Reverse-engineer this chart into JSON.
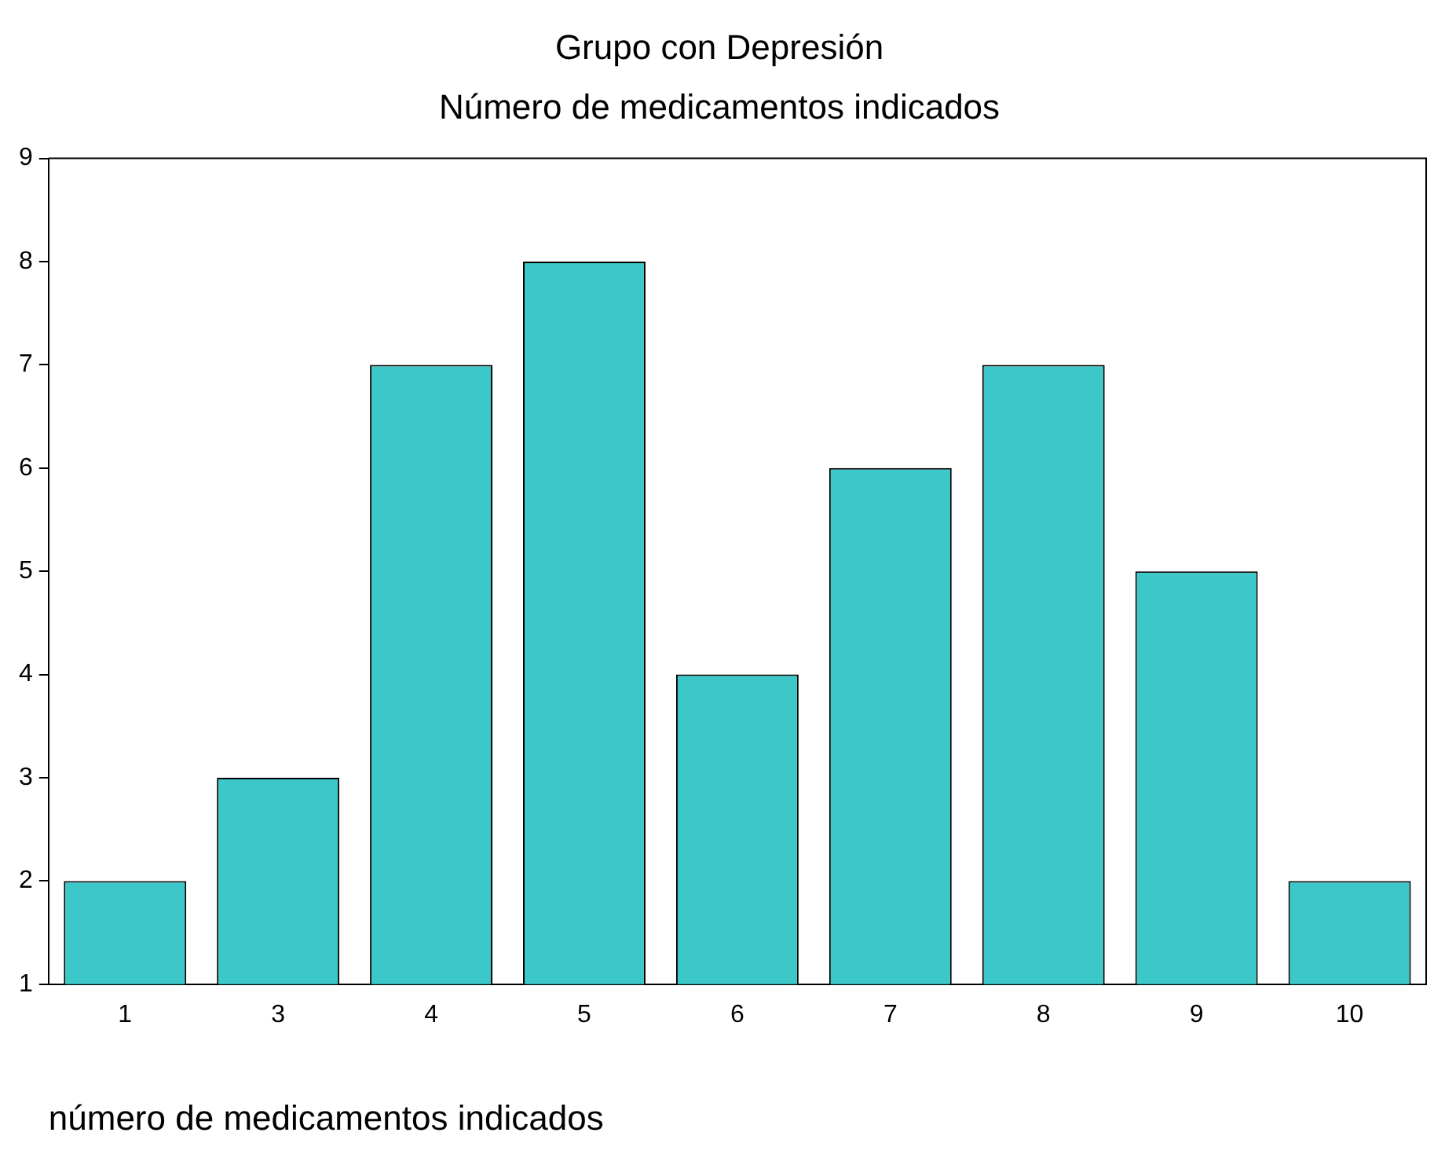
{
  "chart_data": {
    "type": "bar",
    "title": "Grupo con Depresión",
    "subtitle": "Número de medicamentos indicados",
    "xlabel": "número de medicamentos indicados",
    "categories": [
      "1",
      "3",
      "4",
      "5",
      "6",
      "7",
      "8",
      "9",
      "10"
    ],
    "values": [
      2,
      3,
      7,
      8,
      4,
      6,
      7,
      5,
      2
    ],
    "color": "#3cc8c8",
    "ylim": [
      1,
      9
    ],
    "yticks": [
      1,
      2,
      3,
      4,
      5,
      6,
      7,
      8,
      9
    ],
    "grid": false,
    "legend": false
  }
}
